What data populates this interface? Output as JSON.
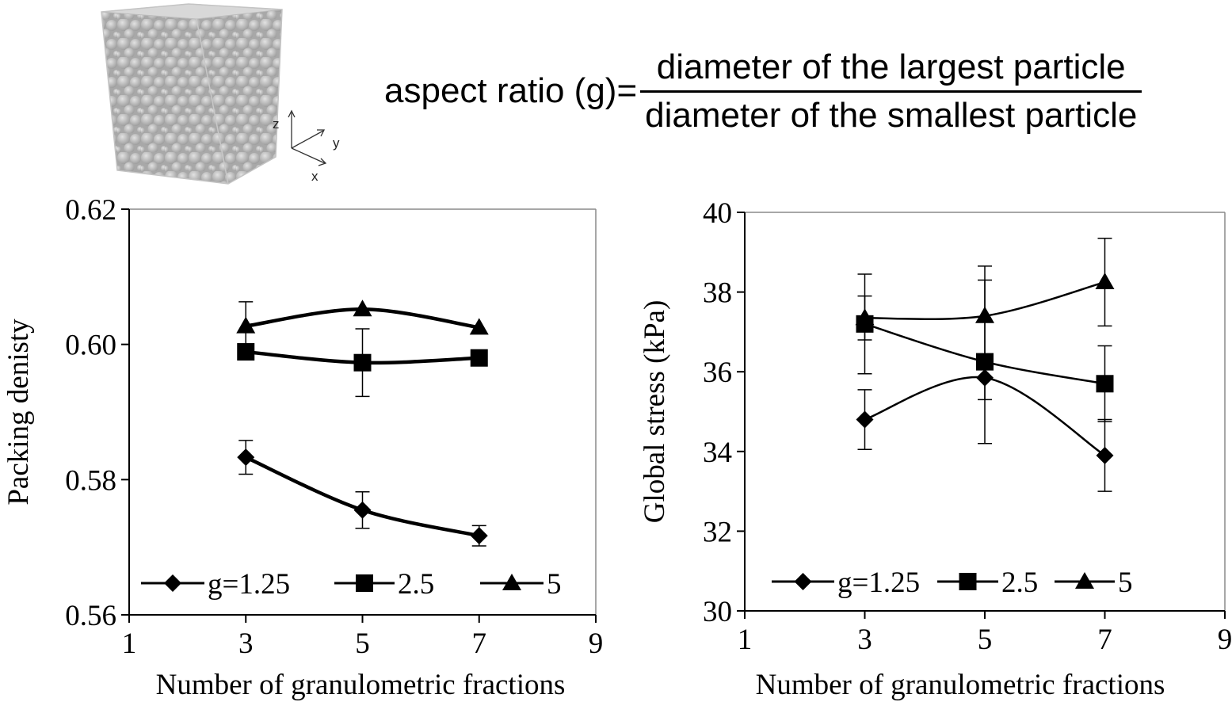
{
  "illustration": {
    "axis_labels": {
      "z": "z",
      "y": "y",
      "x": "x"
    }
  },
  "formula": {
    "lhs": "aspect ratio (g)=",
    "numerator": "diameter of the largest particle",
    "denominator": "diameter of the smallest particle"
  },
  "chart_data": [
    {
      "type": "line",
      "title": "",
      "xlabel": "Number of granulometric fractions",
      "ylabel": "Packing denisty",
      "xlim": [
        1,
        9
      ],
      "ylim": [
        0.56,
        0.62
      ],
      "xticks": [
        1,
        3,
        5,
        7,
        9
      ],
      "yticks": [
        0.56,
        0.58,
        0.6,
        0.62
      ],
      "ytick_labels": [
        "0.56",
        "0.58",
        "0.60",
        "0.62"
      ],
      "xtick_labels": [
        "1",
        "3",
        "5",
        "7",
        "9"
      ],
      "legend_position": "bottom",
      "series": [
        {
          "name": "g=1.25",
          "marker": "diamond",
          "x": [
            3,
            5,
            7
          ],
          "y": [
            0.5833,
            0.5755,
            0.5717
          ],
          "err": [
            0.0025,
            0.0027,
            0.0015
          ]
        },
        {
          "name": "2.5",
          "marker": "square",
          "x": [
            3,
            5,
            7
          ],
          "y": [
            0.5989,
            0.5973,
            0.598
          ],
          "err": [
            0.0,
            0.005,
            0.0
          ]
        },
        {
          "name": "5",
          "marker": "triangle",
          "x": [
            3,
            5,
            7
          ],
          "y": [
            0.6027,
            0.6052,
            0.6025
          ],
          "err": [
            0.0036,
            0.0,
            0.0
          ]
        }
      ]
    },
    {
      "type": "line",
      "title": "",
      "xlabel": "Number of granulometric fractions",
      "ylabel": "Global stress (kPa)",
      "xlim": [
        1,
        9
      ],
      "ylim": [
        30,
        40
      ],
      "xticks": [
        1,
        3,
        5,
        7,
        9
      ],
      "yticks": [
        30,
        32,
        34,
        36,
        38,
        40
      ],
      "ytick_labels": [
        "30",
        "32",
        "34",
        "36",
        "38",
        "40"
      ],
      "xtick_labels": [
        "1",
        "3",
        "5",
        "7",
        "9"
      ],
      "legend_position": "bottom",
      "series": [
        {
          "name": "g=1.25",
          "marker": "diamond",
          "x": [
            3,
            5,
            7
          ],
          "y": [
            34.8,
            35.85,
            33.9
          ],
          "err": [
            0.75,
            0.55,
            0.9
          ]
        },
        {
          "name": "2.5",
          "marker": "square",
          "x": [
            3,
            5,
            7
          ],
          "y": [
            37.2,
            36.25,
            35.7
          ],
          "err": [
            1.25,
            2.05,
            0.95
          ]
        },
        {
          "name": "5",
          "marker": "triangle",
          "x": [
            3,
            5,
            7
          ],
          "y": [
            37.35,
            37.4,
            38.25
          ],
          "err": [
            0.55,
            1.25,
            1.1
          ]
        }
      ]
    }
  ]
}
